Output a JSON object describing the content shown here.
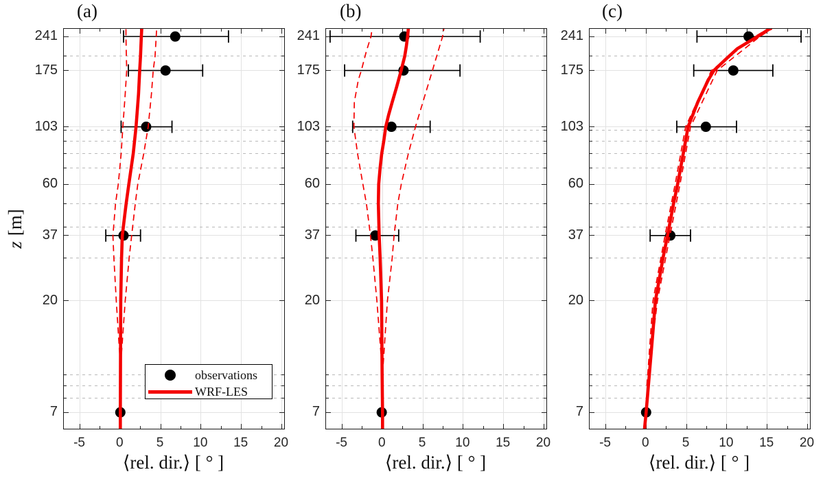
{
  "figure": {
    "x_axis": {
      "label": "⟨rel. dir.⟩ [ ° ]",
      "ticks": [
        -5,
        0,
        5,
        10,
        15,
        20
      ],
      "minor_ticks": [
        -2.5,
        2.5,
        7.5,
        12.5,
        17.5
      ],
      "range": [
        -7,
        20.3
      ],
      "grid": "on"
    },
    "y_axis": {
      "label": "z [m]",
      "label_var": "z",
      "label_unit": "[m]",
      "scale": "log",
      "ticks": [
        7,
        20,
        37,
        60,
        103,
        175,
        241
      ],
      "minor_gridlines": [
        8,
        9,
        10,
        30,
        40,
        50,
        70,
        80,
        90,
        100,
        200
      ],
      "range": [
        6,
        259
      ],
      "grid": "on"
    },
    "legend": {
      "position": "south-east-of-panel-a",
      "items": [
        {
          "label": "observations",
          "marker": "dot",
          "color": "#000000"
        },
        {
          "label": "WRF-LES",
          "marker": "line",
          "color": "#f40000"
        }
      ]
    },
    "colors": {
      "model": "#f40000",
      "observations": "#000000",
      "grid_major": "#e2e2e2",
      "grid_minor": "#b9b9b9",
      "axis": "#1a1a1a",
      "tick_label": "#262626"
    }
  },
  "chart_data": [
    {
      "type": "line+scatter-errorbar",
      "title": "(a)",
      "xlabel": "⟨rel. dir.⟩ [ ° ]",
      "ylabel": "z [m]",
      "xlim": [
        -7,
        20.3
      ],
      "ylim": [
        6,
        259
      ],
      "yscale": "log",
      "observations": [
        {
          "z": 241,
          "value": 6.8,
          "lo": 0.4,
          "hi": 13.4
        },
        {
          "z": 175,
          "value": 5.6,
          "lo": 1.0,
          "hi": 10.2
        },
        {
          "z": 103,
          "value": 3.2,
          "lo": 0.1,
          "hi": 6.4
        },
        {
          "z": 37,
          "value": 0.4,
          "lo": -1.8,
          "hi": 2.5
        },
        {
          "z": 7,
          "value": 0.0,
          "lo": null,
          "hi": null
        }
      ],
      "model_line": [
        [
          0,
          6
        ],
        [
          0,
          7
        ],
        [
          0.02,
          10
        ],
        [
          0.03,
          15
        ],
        [
          0.05,
          20
        ],
        [
          0.15,
          30
        ],
        [
          0.25,
          37
        ],
        [
          0.55,
          45
        ],
        [
          0.72,
          50
        ],
        [
          1.05,
          60
        ],
        [
          1.6,
          80
        ],
        [
          1.95,
          103
        ],
        [
          2.1,
          120
        ],
        [
          2.25,
          140
        ],
        [
          2.4,
          175
        ],
        [
          2.5,
          200
        ],
        [
          2.6,
          241
        ],
        [
          2.65,
          259
        ]
      ],
      "band_lower": [
        [
          0,
          11
        ],
        [
          -0.5,
          20
        ],
        [
          -0.8,
          30
        ],
        [
          -0.92,
          37
        ],
        [
          -0.6,
          50
        ],
        [
          -0.26,
          60
        ],
        [
          0.1,
          80
        ],
        [
          0.31,
          103
        ],
        [
          0.6,
          140
        ],
        [
          0.79,
          175
        ],
        [
          0.75,
          200
        ],
        [
          0.7,
          241
        ],
        [
          0.7,
          259
        ]
      ],
      "band_upper": [
        [
          0.05,
          11
        ],
        [
          0.6,
          20
        ],
        [
          1.1,
          30
        ],
        [
          1.4,
          37
        ],
        [
          1.85,
          50
        ],
        [
          2.16,
          60
        ],
        [
          2.9,
          80
        ],
        [
          3.45,
          103
        ],
        [
          3.85,
          140
        ],
        [
          4.07,
          175
        ],
        [
          4.3,
          200
        ],
        [
          4.45,
          241
        ],
        [
          4.5,
          259
        ]
      ]
    },
    {
      "type": "line+scatter-errorbar",
      "title": "(b)",
      "xlabel": "⟨rel. dir.⟩ [ ° ]",
      "ylabel": "z [m]",
      "xlim": [
        -7,
        20.3
      ],
      "ylim": [
        6,
        259
      ],
      "yscale": "log",
      "observations": [
        {
          "z": 241,
          "value": 2.7,
          "lo": -6.5,
          "hi": 12.1
        },
        {
          "z": 175,
          "value": 2.6,
          "lo": -4.7,
          "hi": 9.6
        },
        {
          "z": 103,
          "value": 1.1,
          "lo": -3.7,
          "hi": 5.9
        },
        {
          "z": 37,
          "value": -0.9,
          "lo": -3.3,
          "hi": 2.0
        },
        {
          "z": 7,
          "value": -0.1,
          "lo": null,
          "hi": null
        }
      ],
      "model_line": [
        [
          0,
          6
        ],
        [
          0,
          7
        ],
        [
          -0.05,
          10
        ],
        [
          -0.12,
          20
        ],
        [
          -0.3,
          30
        ],
        [
          -0.42,
          37
        ],
        [
          -0.52,
          50
        ],
        [
          -0.48,
          60
        ],
        [
          -0.3,
          70
        ],
        [
          -0.1,
          80
        ],
        [
          0.15,
          90
        ],
        [
          0.4,
          103
        ],
        [
          0.75,
          115
        ],
        [
          1.2,
          130
        ],
        [
          1.75,
          150
        ],
        [
          2.3,
          175
        ],
        [
          2.75,
          200
        ],
        [
          2.95,
          220
        ],
        [
          3.1,
          241
        ],
        [
          3.2,
          259
        ]
      ],
      "band_lower": [
        [
          0,
          10
        ],
        [
          -0.7,
          20
        ],
        [
          -1.2,
          30
        ],
        [
          -1.5,
          37
        ],
        [
          -2.0,
          50
        ],
        [
          -2.43,
          60
        ],
        [
          -3.1,
          80
        ],
        [
          -3.55,
          103
        ],
        [
          -3.5,
          130
        ],
        [
          -3.0,
          160
        ],
        [
          -2.63,
          175
        ],
        [
          -2.0,
          210
        ],
        [
          -1.43,
          241
        ],
        [
          -1.3,
          259
        ]
      ],
      "band_upper": [
        [
          0,
          10
        ],
        [
          0.6,
          20
        ],
        [
          1.2,
          30
        ],
        [
          1.43,
          37
        ],
        [
          1.9,
          50
        ],
        [
          2.32,
          60
        ],
        [
          3.2,
          80
        ],
        [
          4.08,
          103
        ],
        [
          5.0,
          130
        ],
        [
          6.18,
          175
        ],
        [
          6.9,
          210
        ],
        [
          7.44,
          241
        ],
        [
          7.6,
          259
        ]
      ]
    },
    {
      "type": "line+scatter-errorbar",
      "title": "(c)",
      "xlabel": "⟨rel. dir.⟩ [ ° ]",
      "ylabel": "z [m]",
      "xlim": [
        -7,
        20.3
      ],
      "ylim": [
        6,
        259
      ],
      "yscale": "log",
      "observations": [
        {
          "z": 241,
          "value": 12.7,
          "lo": 6.3,
          "hi": 19.2
        },
        {
          "z": 175,
          "value": 10.8,
          "lo": 5.9,
          "hi": 15.7
        },
        {
          "z": 103,
          "value": 7.4,
          "lo": 3.8,
          "hi": 11.2
        },
        {
          "z": 37,
          "value": 3.0,
          "lo": 0.5,
          "hi": 5.5
        },
        {
          "z": 7,
          "value": 0.0,
          "lo": null,
          "hi": null
        }
      ],
      "model_line": [
        [
          -0.2,
          6
        ],
        [
          0,
          7
        ],
        [
          0.4,
          10
        ],
        [
          0.85,
          15
        ],
        [
          1.15,
          20
        ],
        [
          2.1,
          30
        ],
        [
          2.65,
          37
        ],
        [
          3.4,
          50
        ],
        [
          3.9,
          60
        ],
        [
          4.6,
          80
        ],
        [
          5.2,
          103
        ],
        [
          6.4,
          130
        ],
        [
          7.7,
          160
        ],
        [
          8.4,
          175
        ],
        [
          9.9,
          195
        ],
        [
          11.3,
          215
        ],
        [
          13.8,
          241
        ],
        [
          15.3,
          259
        ]
      ],
      "band_lower": [
        [
          0.1,
          9
        ],
        [
          0.85,
          20
        ],
        [
          2.35,
          37
        ],
        [
          3.6,
          60
        ],
        [
          4.9,
          103
        ],
        [
          8.1,
          175
        ],
        [
          13.5,
          241
        ],
        [
          15.1,
          259
        ]
      ],
      "band_upper": [
        [
          0.1,
          9
        ],
        [
          1.4,
          20
        ],
        [
          2.95,
          37
        ],
        [
          4.2,
          60
        ],
        [
          5.5,
          103
        ],
        [
          8.8,
          175
        ],
        [
          14.1,
          241
        ],
        [
          15.6,
          259
        ]
      ]
    }
  ]
}
